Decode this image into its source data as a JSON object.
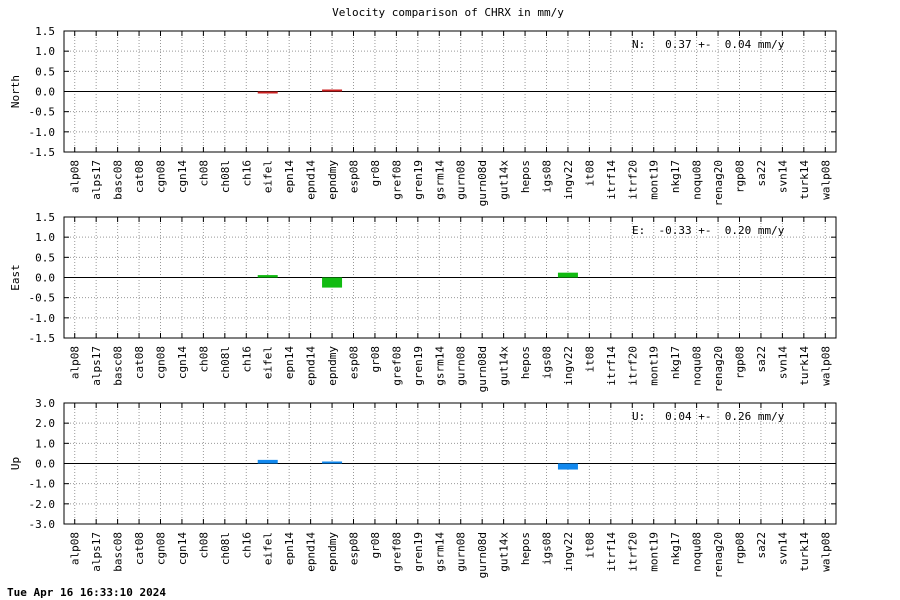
{
  "title": "Velocity comparison of CHRX in mm/y",
  "timestamp": "Tue Apr 16 16:33:10 2024",
  "chart_data": [
    {
      "type": "bar",
      "ylabel": "North",
      "annotation": "N:   0.37 +-  0.04 mm/y",
      "ylim": [
        -1.5,
        1.5
      ],
      "yticks": [
        "1.5",
        "1.0",
        "0.5",
        "0.0",
        "-0.5",
        "-1.0",
        "-1.5"
      ],
      "grid": true,
      "color": "#cc2222",
      "categories": [
        "alp08",
        "alps17",
        "basc08",
        "cat08",
        "cgn08",
        "cgn14",
        "ch08",
        "ch08l",
        "ch16",
        "eifel",
        "epn14",
        "epnd14",
        "epndmy",
        "esp08",
        "gr08",
        "gref08",
        "gren19",
        "gsrm14",
        "gurn08",
        "gurn08d",
        "gut14x",
        "hepos",
        "igs08",
        "ingv22",
        "it08",
        "itrf14",
        "itrf20",
        "mont19",
        "nkg17",
        "noqu08",
        "renag20",
        "rgp08",
        "sa22",
        "svn14",
        "turk14",
        "walp08"
      ],
      "values": [
        null,
        null,
        null,
        null,
        null,
        null,
        null,
        null,
        null,
        -0.03,
        null,
        null,
        0.01,
        null,
        null,
        null,
        null,
        null,
        null,
        null,
        null,
        null,
        null,
        null,
        null,
        null,
        null,
        null,
        null,
        null,
        null,
        null,
        null,
        null,
        null,
        null
      ]
    },
    {
      "type": "bar",
      "ylabel": "East",
      "annotation": "E:  -0.33 +-  0.20 mm/y",
      "ylim": [
        -1.5,
        1.5
      ],
      "yticks": [
        "1.5",
        "1.0",
        "0.5",
        "0.0",
        "-0.5",
        "-1.0",
        "-1.5"
      ],
      "grid": true,
      "color": "#11bb11",
      "categories": [
        "alp08",
        "alps17",
        "basc08",
        "cat08",
        "cgn08",
        "cgn14",
        "ch08",
        "ch08l",
        "ch16",
        "eifel",
        "epn14",
        "epnd14",
        "epndmy",
        "esp08",
        "gr08",
        "gref08",
        "gren19",
        "gsrm14",
        "gurn08",
        "gurn08d",
        "gut14x",
        "hepos",
        "igs08",
        "ingv22",
        "it08",
        "itrf14",
        "itrf20",
        "mont19",
        "nkg17",
        "noqu08",
        "renag20",
        "rgp08",
        "sa22",
        "svn14",
        "turk14",
        "walp08"
      ],
      "values": [
        null,
        null,
        null,
        null,
        null,
        null,
        null,
        null,
        null,
        0.06,
        null,
        null,
        -0.25,
        null,
        null,
        null,
        null,
        null,
        null,
        null,
        null,
        null,
        null,
        0.12,
        null,
        null,
        null,
        null,
        null,
        null,
        null,
        null,
        null,
        null,
        null,
        null
      ]
    },
    {
      "type": "bar",
      "ylabel": "Up",
      "annotation": "U:   0.04 +-  0.26 mm/y",
      "ylim": [
        -3.0,
        3.0
      ],
      "yticks": [
        "3.0",
        "2.0",
        "1.0",
        "0.0",
        "-1.0",
        "-2.0",
        "-3.0"
      ],
      "grid": true,
      "color": "#1188ee",
      "categories": [
        "alp08",
        "alps17",
        "basc08",
        "cat08",
        "cgn08",
        "cgn14",
        "ch08",
        "ch08l",
        "ch16",
        "eifel",
        "epn14",
        "epnd14",
        "epndmy",
        "esp08",
        "gr08",
        "gref08",
        "gren19",
        "gsrm14",
        "gurn08",
        "gurn08d",
        "gut14x",
        "hepos",
        "igs08",
        "ingv22",
        "it08",
        "itrf14",
        "itrf20",
        "mont19",
        "nkg17",
        "noqu08",
        "renag20",
        "rgp08",
        "sa22",
        "svn14",
        "turk14",
        "walp08"
      ],
      "values": [
        null,
        null,
        null,
        null,
        null,
        null,
        null,
        null,
        null,
        0.18,
        null,
        null,
        0.07,
        null,
        null,
        null,
        null,
        null,
        null,
        null,
        null,
        null,
        null,
        -0.3,
        null,
        null,
        null,
        null,
        null,
        null,
        null,
        null,
        null,
        null,
        null,
        null
      ]
    }
  ]
}
